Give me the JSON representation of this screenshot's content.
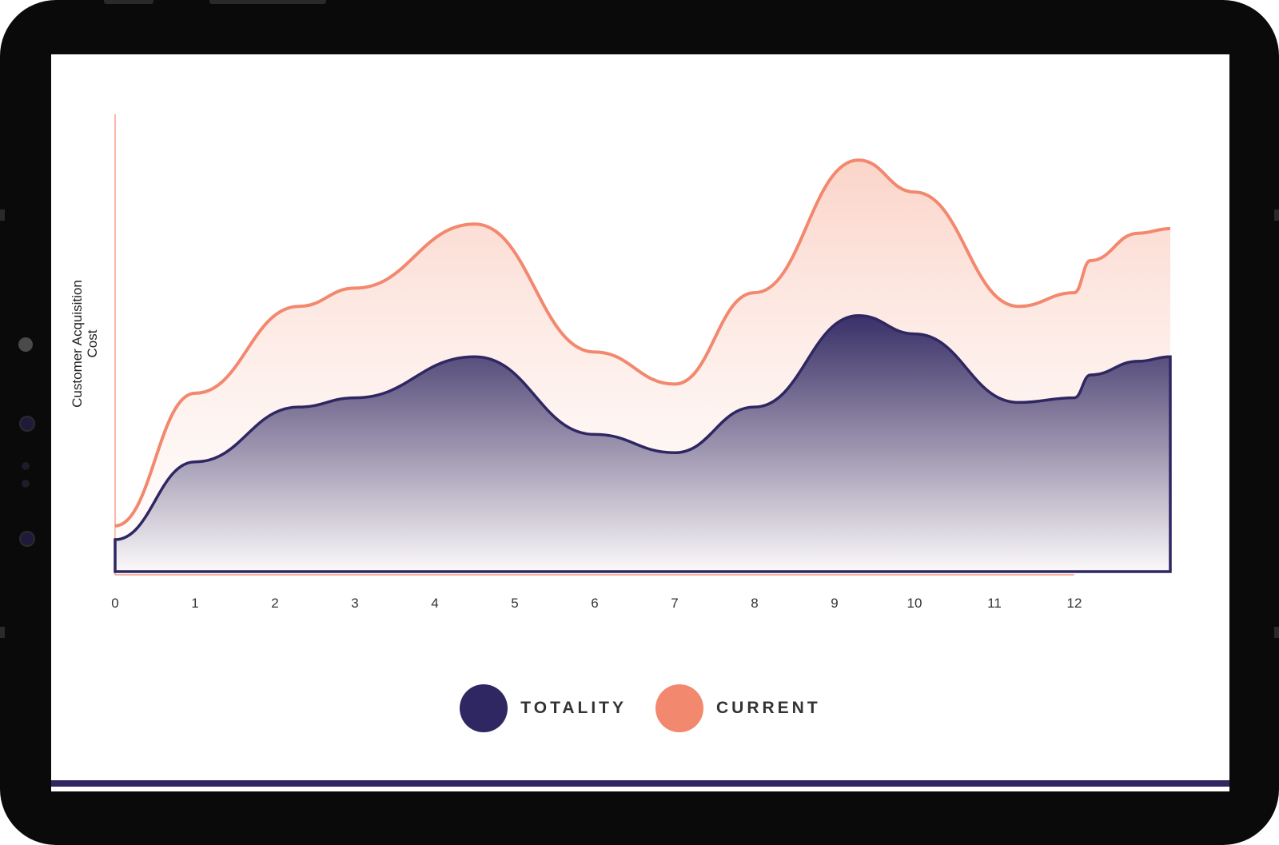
{
  "colors": {
    "totality": "#2e2762",
    "current": "#f2886e",
    "axis": "#f2886e"
  },
  "legend": {
    "items": [
      {
        "label": "TOTALITY",
        "color": "#2e2762"
      },
      {
        "label": "CURRENT",
        "color": "#f2886e"
      }
    ]
  },
  "chart_data": {
    "type": "area",
    "ylabel": "Customer Acquisition Cost",
    "xlabel": "",
    "x_ticks": [
      "0",
      "1",
      "2",
      "3",
      "4",
      "5",
      "6",
      "7",
      "8",
      "9",
      "10",
      "11",
      "12"
    ],
    "xlim": [
      0,
      13.2
    ],
    "ylim": [
      0,
      100
    ],
    "series": [
      {
        "name": "TOTALITY",
        "x": [
          0,
          1,
          2.3,
          3,
          4.5,
          6,
          7,
          8,
          9.3,
          10,
          11.3,
          12,
          12.2,
          12.8,
          13.2
        ],
        "values": [
          7,
          24,
          36,
          38,
          47,
          30,
          26,
          36,
          56,
          52,
          37,
          38,
          43,
          46,
          47
        ]
      },
      {
        "name": "CURRENT",
        "x": [
          0,
          1,
          2.3,
          3,
          4.5,
          6,
          7,
          8,
          9.3,
          10,
          11.3,
          12,
          12.2,
          12.8,
          13.2
        ],
        "values": [
          10,
          39,
          58,
          62,
          76,
          48,
          41,
          61,
          90,
          83,
          58,
          61,
          68,
          74,
          75
        ]
      }
    ]
  }
}
